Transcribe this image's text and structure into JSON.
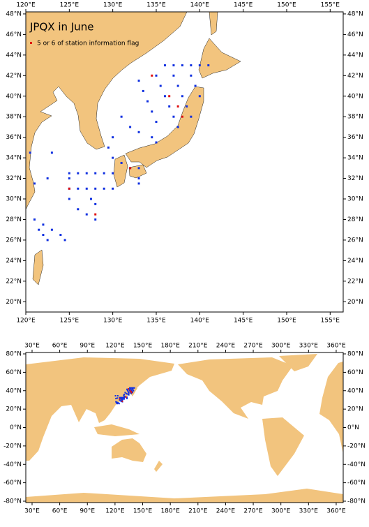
{
  "regional_map": {
    "title": "JPQX in June",
    "legend": {
      "label": "5 or 6 of station information flag",
      "color": "#e01010"
    },
    "xlim": [
      120,
      156.5
    ],
    "ylim": [
      19,
      48.2
    ],
    "xticks": [
      {
        "value": 120,
        "label": "120°E"
      },
      {
        "value": 125,
        "label": "125°E"
      },
      {
        "value": 130,
        "label": "130°E"
      },
      {
        "value": 135,
        "label": "135°E"
      },
      {
        "value": 140,
        "label": "140°E"
      },
      {
        "value": 145,
        "label": "145°E"
      },
      {
        "value": 150,
        "label": "150°E"
      },
      {
        "value": 155,
        "label": "155°E"
      }
    ],
    "yticks": [
      {
        "value": 20,
        "label": "20°N"
      },
      {
        "value": 22,
        "label": "22°N"
      },
      {
        "value": 24,
        "label": "24°N"
      },
      {
        "value": 26,
        "label": "26°N"
      },
      {
        "value": 28,
        "label": "28°N"
      },
      {
        "value": 30,
        "label": "30°N"
      },
      {
        "value": 32,
        "label": "32°N"
      },
      {
        "value": 34,
        "label": "34°N"
      },
      {
        "value": 36,
        "label": "36°N"
      },
      {
        "value": 38,
        "label": "38°N"
      },
      {
        "value": 40,
        "label": "40°N"
      },
      {
        "value": 42,
        "label": "42°N"
      },
      {
        "value": 44,
        "label": "44°N"
      },
      {
        "value": 46,
        "label": "46°N"
      },
      {
        "value": 48,
        "label": "48°N"
      }
    ],
    "stations": {
      "color": "#1030e0",
      "lon": [
        136,
        137,
        138,
        139,
        140,
        141,
        133,
        133.5,
        134,
        134.5,
        135,
        135,
        135.5,
        136,
        136.5,
        137,
        137.5,
        137,
        137.5,
        138,
        138.5,
        139,
        139,
        139.5,
        140,
        134.5,
        135,
        131,
        132,
        133,
        130,
        129.5,
        123,
        125,
        126,
        127,
        128,
        129,
        130,
        125,
        126,
        127,
        128,
        129,
        130,
        125,
        125,
        126,
        127,
        128,
        121,
        122,
        123,
        124,
        124.5,
        121.5,
        122,
        122.5,
        130,
        131,
        132,
        133,
        133,
        133,
        127.5,
        128,
        121,
        120.5,
        122.5
      ],
      "lat": [
        43,
        43,
        43,
        43,
        43,
        43,
        41.5,
        40.5,
        39.5,
        38.5,
        37.5,
        42,
        41,
        40,
        39,
        38,
        37,
        42,
        41,
        40,
        39,
        38,
        42,
        41,
        40,
        36,
        35.5,
        38,
        37,
        36.5,
        36,
        35,
        34.5,
        32.5,
        32.5,
        32.5,
        32.5,
        32.5,
        32.5,
        31,
        31,
        31,
        31,
        31,
        31,
        32,
        30,
        29,
        28.5,
        28,
        28,
        27.5,
        27,
        26.5,
        26,
        27,
        26.5,
        26,
        34,
        33.5,
        33,
        33,
        32,
        31.5,
        30,
        29.5,
        31.5,
        34.5,
        32
      ]
    },
    "flagged": {
      "lon": [
        134.5,
        136.5,
        137.5,
        138,
        125,
        128,
        132
      ],
      "lat": [
        42,
        40,
        39,
        38,
        31,
        28.5,
        33
      ]
    }
  },
  "world_map": {
    "xlim": [
      23.2,
      367.6
    ],
    "ylim": [
      -80,
      80
    ],
    "xticks": [
      {
        "value": 30,
        "label": "30°E"
      },
      {
        "value": 60,
        "label": "60°E"
      },
      {
        "value": 90,
        "label": "90°E"
      },
      {
        "value": 120,
        "label": "120°E"
      },
      {
        "value": 150,
        "label": "150°E"
      },
      {
        "value": 180,
        "label": "180°E"
      },
      {
        "value": 210,
        "label": "210°E"
      },
      {
        "value": 240,
        "label": "240°E"
      },
      {
        "value": 270,
        "label": "270°E"
      },
      {
        "value": 300,
        "label": "300°E"
      },
      {
        "value": 330,
        "label": "330°E"
      },
      {
        "value": 360,
        "label": "360°E"
      }
    ],
    "yticks": [
      {
        "value": -80,
        "label": "-80°N"
      },
      {
        "value": -60,
        "label": "-60°N"
      },
      {
        "value": -40,
        "label": "-40°N"
      },
      {
        "value": -20,
        "label": "-20°N"
      },
      {
        "value": 0,
        "label": "0°N"
      },
      {
        "value": 20,
        "label": "20°N"
      },
      {
        "value": 40,
        "label": "40°N"
      },
      {
        "value": 60,
        "label": "60°N"
      },
      {
        "value": 80,
        "label": "80°N"
      }
    ]
  }
}
